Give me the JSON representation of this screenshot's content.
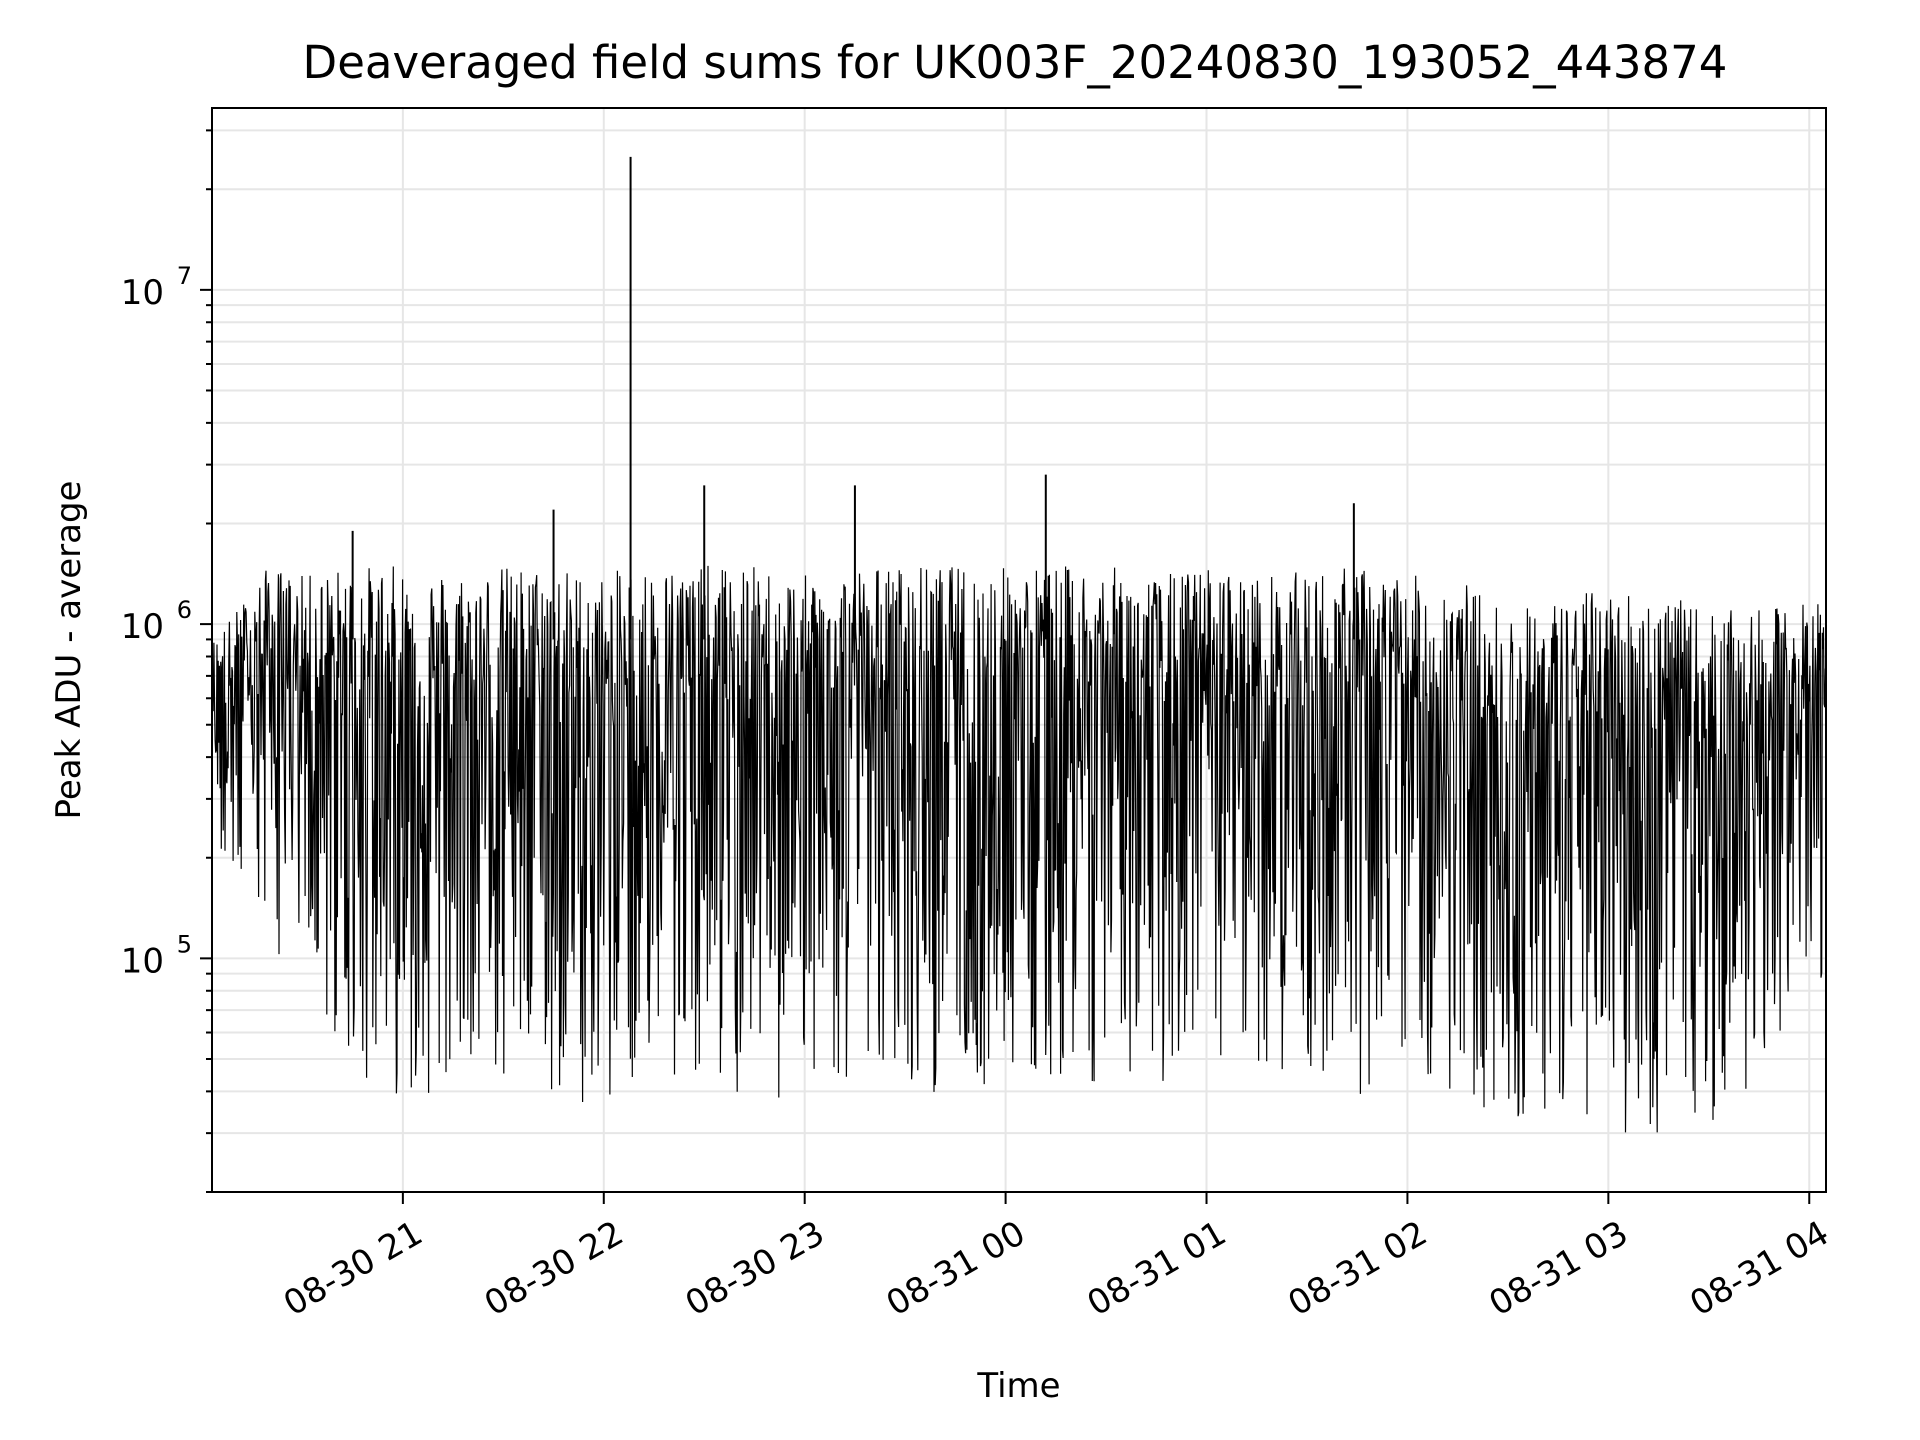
{
  "chart_data": {
    "type": "line",
    "title": "Deaveraged field sums for UK003F_20240830_193052_443874",
    "xlabel": "Time",
    "ylabel": "Peak ADU - average",
    "yscale": "log",
    "ylim": [
      20000,
      35000000
    ],
    "xlim": [
      "2024-08-30 20:03",
      "2024-08-31 04:05"
    ],
    "grid": true,
    "line_color": "#000000",
    "x_ticks": [
      "08-30 21",
      "08-30 22",
      "08-30 23",
      "08-31 00",
      "08-31 01",
      "08-31 02",
      "08-31 03",
      "08-31 04"
    ],
    "y_ticks": [
      {
        "base": "10",
        "exp": "5",
        "value": 100000
      },
      {
        "base": "10",
        "exp": "6",
        "value": 1000000
      },
      {
        "base": "10",
        "exp": "7",
        "value": 10000000
      }
    ],
    "series": [
      {
        "x": [
          "2024-08-30 20:03",
          "2024-08-30 20:10",
          "2024-08-30 20:20",
          "2024-08-30 20:30",
          "2024-08-30 20:45",
          "2024-08-30 21:00",
          "2024-08-30 21:15",
          "2024-08-30 21:30",
          "2024-08-30 21:45",
          "2024-08-30 22:00",
          "2024-08-30 22:08",
          "2024-08-30 22:15",
          "2024-08-30 22:30",
          "2024-08-30 22:45",
          "2024-08-30 23:00",
          "2024-08-30 23:15",
          "2024-08-30 23:30",
          "2024-08-30 23:45",
          "2024-08-31 00:00",
          "2024-08-31 00:12",
          "2024-08-31 00:30",
          "2024-08-31 00:45",
          "2024-08-31 01:00",
          "2024-08-31 01:15",
          "2024-08-31 01:30",
          "2024-08-31 01:44",
          "2024-08-31 02:00",
          "2024-08-31 02:15",
          "2024-08-31 02:30",
          "2024-08-31 02:45",
          "2024-08-31 03:00",
          "2024-08-31 03:15",
          "2024-08-31 03:30",
          "2024-08-31 03:45",
          "2024-08-31 04:05"
        ],
        "upper": [
          900000,
          1100000,
          1500000,
          1400000,
          1900000,
          1500000,
          1450000,
          1600000,
          2200000,
          1400000,
          25000000,
          1500000,
          2600000,
          1500000,
          1400000,
          2600000,
          1550000,
          1500000,
          1500000,
          2800000,
          1500000,
          1400000,
          1500000,
          1400000,
          1450000,
          2300000,
          1400000,
          1400000,
          1100000,
          1200000,
          1300000,
          1250000,
          1100000,
          1100000,
          1200000
        ],
        "lower": [
          250000,
          130000,
          110000,
          80000,
          45000,
          38000,
          40000,
          40000,
          38000,
          36000,
          40000,
          45000,
          44000,
          31000,
          42000,
          40000,
          42000,
          38000,
          40000,
          45000,
          42000,
          40000,
          40000,
          42000,
          45000,
          36000,
          50000,
          36000,
          32000,
          30000,
          31000,
          28000,
          27000,
          45000,
          90000
        ]
      }
    ]
  }
}
